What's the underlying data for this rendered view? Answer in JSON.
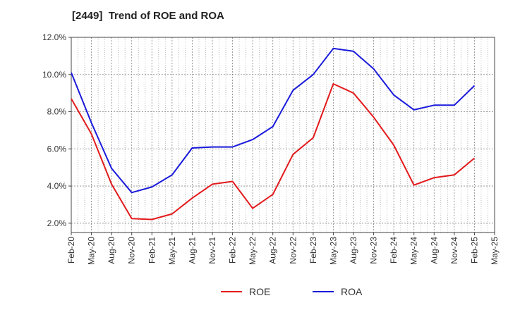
{
  "chart_data": {
    "type": "line",
    "title": "[2449]  Trend of ROE and ROA",
    "xlabel": "",
    "ylabel": "",
    "categories": [
      "Feb-20",
      "May-20",
      "Aug-20",
      "Nov-20",
      "Feb-21",
      "May-21",
      "Aug-21",
      "Nov-21",
      "Feb-22",
      "May-22",
      "Aug-22",
      "Nov-22",
      "Feb-23",
      "May-23",
      "Aug-23",
      "Nov-23",
      "Feb-24",
      "May-24",
      "Aug-24",
      "Nov-24",
      "Feb-25",
      "May-25"
    ],
    "y_ticks": [
      "2.0%",
      "4.0%",
      "6.0%",
      "8.0%",
      "10.0%",
      "12.0%"
    ],
    "y_tick_values": [
      2,
      4,
      6,
      8,
      10,
      12
    ],
    "ylim": [
      1.5,
      12.0
    ],
    "grid": true,
    "legend_position": "bottom-center",
    "series": [
      {
        "name": "ROE",
        "color": "#e31a1c",
        "values": [
          8.7,
          6.8,
          4.1,
          2.25,
          2.2,
          2.5,
          3.35,
          4.1,
          4.25,
          2.8,
          3.55,
          5.7,
          6.6,
          9.5,
          9.0,
          7.7,
          6.2,
          4.05,
          4.45,
          4.6,
          5.5,
          null
        ]
      },
      {
        "name": "ROA",
        "color": "#1a1adc",
        "values": [
          10.1,
          7.4,
          4.95,
          3.65,
          3.95,
          4.6,
          6.05,
          6.1,
          6.1,
          6.5,
          7.2,
          9.15,
          10.0,
          11.4,
          11.25,
          10.3,
          8.9,
          8.1,
          8.35,
          8.35,
          9.4,
          null
        ]
      }
    ]
  }
}
